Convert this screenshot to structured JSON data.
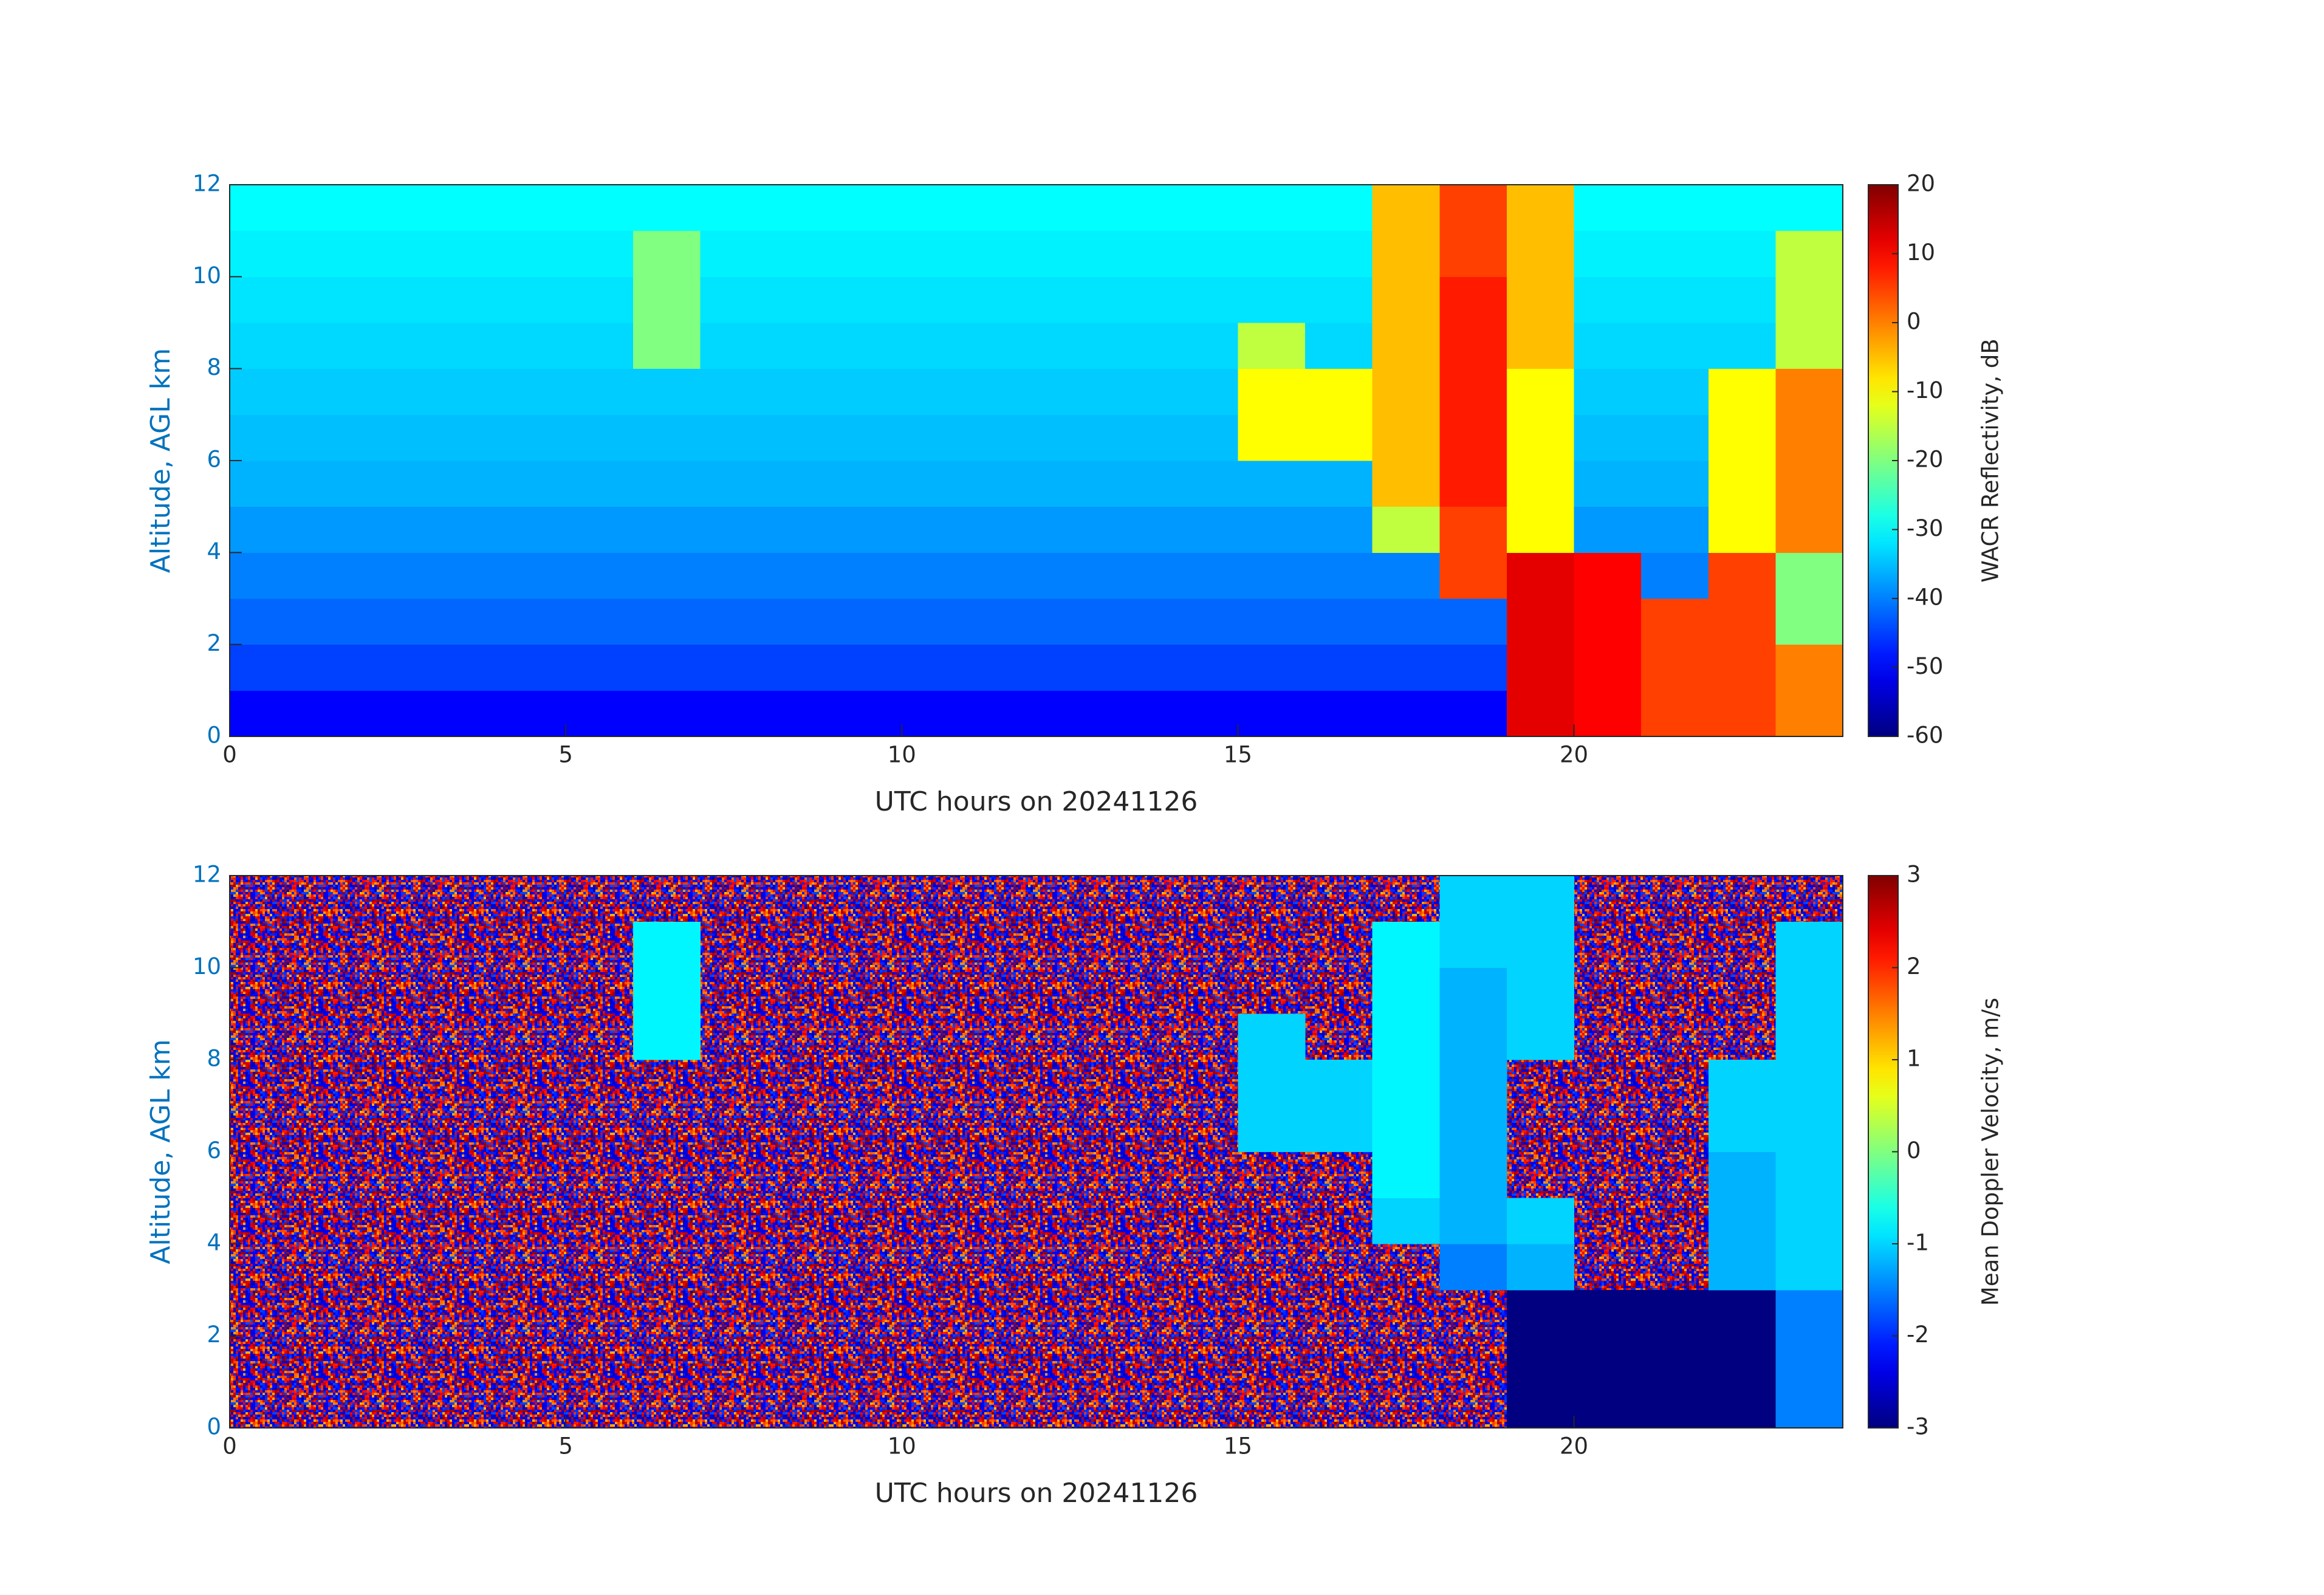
{
  "chart_data": [
    {
      "type": "heatmap",
      "colormap": "jet",
      "xlabel": "UTC hours on 20241126",
      "ylabel": "Altitude, AGL km",
      "colorbar_label": "WACR Reflectivity, dB",
      "xlim": [
        0,
        24
      ],
      "xticks": [
        0,
        5,
        10,
        15,
        20
      ],
      "ylim": [
        0,
        12
      ],
      "yticks": [
        0,
        2,
        4,
        6,
        8,
        10,
        12
      ],
      "clim": [
        -60,
        20
      ],
      "cticks": [
        -60,
        -50,
        -40,
        -30,
        -20,
        -10,
        0,
        10,
        20
      ],
      "xbins": [
        0,
        1,
        2,
        3,
        4,
        5,
        6,
        7,
        8,
        9,
        10,
        11,
        12,
        13,
        14,
        15,
        16,
        17,
        18,
        19,
        20,
        21,
        22,
        23,
        24
      ],
      "ybins": [
        0,
        1,
        2,
        3,
        4,
        5,
        6,
        7,
        8,
        9,
        10,
        11,
        12
      ],
      "values": [
        [
          -50,
          -50,
          -50,
          -50,
          -50,
          -50,
          -50,
          -50,
          -50,
          -50,
          -50,
          -50,
          -50,
          -50,
          -50,
          -50,
          -50,
          -50,
          -50,
          12,
          10,
          5,
          5,
          0
        ],
        [
          -45,
          -45,
          -45,
          -45,
          -45,
          -45,
          -45,
          -45,
          -45,
          -45,
          -45,
          -45,
          -45,
          -45,
          -45,
          -45,
          -45,
          -45,
          -45,
          12,
          10,
          5,
          5,
          0
        ],
        [
          -42,
          -42,
          -42,
          -42,
          -42,
          -42,
          -42,
          -42,
          -42,
          -42,
          -42,
          -42,
          -42,
          -42,
          -42,
          -42,
          -42,
          -42,
          -42,
          12,
          10,
          5,
          5,
          -20
        ],
        [
          -40,
          -40,
          -40,
          -40,
          -40,
          -40,
          -40,
          -40,
          -40,
          -40,
          -40,
          -40,
          -40,
          -40,
          -40,
          -40,
          -40,
          -40,
          5,
          12,
          10,
          -40,
          5,
          -20
        ],
        [
          -38,
          -38,
          -38,
          -38,
          -38,
          -38,
          -38,
          -38,
          -38,
          -38,
          -38,
          -38,
          -38,
          -38,
          -38,
          -38,
          -38,
          -15,
          5,
          -10,
          -38,
          -38,
          -10,
          0
        ],
        [
          -36,
          -36,
          -36,
          -36,
          -36,
          -36,
          -36,
          -36,
          -36,
          -36,
          -36,
          -36,
          -36,
          -36,
          -36,
          -36,
          -36,
          -5,
          8,
          -10,
          -36,
          -36,
          -10,
          0
        ],
        [
          -35,
          -35,
          -35,
          -35,
          -35,
          -35,
          -35,
          -35,
          -35,
          -35,
          -35,
          -35,
          -35,
          -35,
          -35,
          -10,
          -10,
          -5,
          8,
          -10,
          -35,
          -35,
          -10,
          0
        ],
        [
          -34,
          -34,
          -34,
          -34,
          -34,
          -34,
          -34,
          -34,
          -34,
          -34,
          -34,
          -34,
          -34,
          -34,
          -34,
          -10,
          -10,
          -5,
          8,
          -10,
          -34,
          -34,
          -10,
          0
        ],
        [
          -33,
          -33,
          -33,
          -33,
          -33,
          -33,
          -20,
          -33,
          -33,
          -33,
          -33,
          -33,
          -33,
          -33,
          -33,
          -15,
          -33,
          -5,
          8,
          -5,
          -33,
          -33,
          -33,
          -15
        ],
        [
          -32,
          -32,
          -32,
          -32,
          -32,
          -32,
          -20,
          -32,
          -32,
          -32,
          -32,
          -32,
          -32,
          -32,
          -32,
          -32,
          -32,
          -5,
          8,
          -5,
          -32,
          -32,
          -32,
          -15
        ],
        [
          -31,
          -31,
          -31,
          -31,
          -31,
          -31,
          -20,
          -31,
          -31,
          -31,
          -31,
          -31,
          -31,
          -31,
          -31,
          -31,
          -31,
          -5,
          5,
          -5,
          -31,
          -31,
          -31,
          -15
        ],
        [
          -30,
          -30,
          -30,
          -30,
          -30,
          -30,
          -30,
          -30,
          -30,
          -30,
          -30,
          -30,
          -30,
          -30,
          -30,
          -30,
          -30,
          -5,
          5,
          -5,
          -30,
          -30,
          -30,
          -30
        ]
      ]
    },
    {
      "type": "heatmap",
      "colormap": "jet",
      "xlabel": "UTC hours on 20241126",
      "ylabel": "Altitude, AGL km",
      "colorbar_label": "Mean Doppler Velocity, m/s",
      "xlim": [
        0,
        24
      ],
      "xticks": [
        0,
        5,
        10,
        15,
        20
      ],
      "ylim": [
        0,
        12
      ],
      "yticks": [
        0,
        2,
        4,
        6,
        8,
        10,
        12
      ],
      "clim": [
        -3,
        3
      ],
      "cticks": [
        -3,
        -2,
        -1,
        0,
        1,
        2,
        3
      ],
      "xbins": [
        0,
        1,
        2,
        3,
        4,
        5,
        6,
        7,
        8,
        9,
        10,
        11,
        12,
        13,
        14,
        15,
        16,
        17,
        18,
        19,
        20,
        21,
        22,
        23,
        24
      ],
      "ybins": [
        0,
        1,
        2,
        3,
        4,
        5,
        6,
        7,
        8,
        9,
        10,
        11,
        12
      ],
      "values": [
        [
          null,
          null,
          null,
          null,
          null,
          null,
          null,
          null,
          null,
          null,
          null,
          null,
          null,
          null,
          null,
          null,
          null,
          null,
          null,
          -3,
          -3,
          -3,
          -3,
          -1.5
        ],
        [
          null,
          null,
          null,
          null,
          null,
          null,
          null,
          null,
          null,
          null,
          null,
          null,
          null,
          null,
          null,
          null,
          null,
          null,
          null,
          -3,
          -3,
          -3,
          -3,
          -1.5
        ],
        [
          null,
          null,
          null,
          null,
          null,
          null,
          null,
          null,
          null,
          null,
          null,
          null,
          null,
          null,
          null,
          null,
          null,
          null,
          null,
          -3,
          -3,
          -3,
          -3,
          -1.5
        ],
        [
          null,
          null,
          null,
          null,
          null,
          null,
          null,
          null,
          null,
          null,
          null,
          null,
          null,
          null,
          null,
          null,
          null,
          null,
          -1.5,
          -1.2,
          null,
          null,
          -1.2,
          -1
        ],
        [
          null,
          null,
          null,
          null,
          null,
          null,
          null,
          null,
          null,
          null,
          null,
          null,
          null,
          null,
          null,
          null,
          null,
          -1,
          -1.2,
          -1,
          null,
          null,
          -1.2,
          -1
        ],
        [
          null,
          null,
          null,
          null,
          null,
          null,
          null,
          null,
          null,
          null,
          null,
          null,
          null,
          null,
          null,
          null,
          null,
          -0.8,
          -1.2,
          null,
          null,
          null,
          -1.2,
          -1
        ],
        [
          null,
          null,
          null,
          null,
          null,
          null,
          null,
          null,
          null,
          null,
          null,
          null,
          null,
          null,
          null,
          -1,
          -1,
          -0.8,
          -1.2,
          null,
          null,
          null,
          -1,
          -1
        ],
        [
          null,
          null,
          null,
          null,
          null,
          null,
          null,
          null,
          null,
          null,
          null,
          null,
          null,
          null,
          null,
          -1,
          -1,
          -0.8,
          -1.2,
          null,
          null,
          null,
          -1,
          -1
        ],
        [
          null,
          null,
          null,
          null,
          null,
          null,
          -0.8,
          null,
          null,
          null,
          null,
          null,
          null,
          null,
          null,
          -1,
          null,
          -0.8,
          -1.2,
          -1,
          null,
          null,
          null,
          -1
        ],
        [
          null,
          null,
          null,
          null,
          null,
          null,
          -0.8,
          null,
          null,
          null,
          null,
          null,
          null,
          null,
          null,
          null,
          null,
          -0.8,
          -1.2,
          -1,
          null,
          null,
          null,
          -1
        ],
        [
          null,
          null,
          null,
          null,
          null,
          null,
          -0.8,
          null,
          null,
          null,
          null,
          null,
          null,
          null,
          null,
          null,
          null,
          -0.8,
          -1,
          -1,
          null,
          null,
          null,
          -1
        ],
        [
          null,
          null,
          null,
          null,
          null,
          null,
          null,
          null,
          null,
          null,
          null,
          null,
          null,
          null,
          null,
          null,
          null,
          null,
          -1,
          -1,
          null,
          null,
          null,
          null
        ]
      ]
    }
  ]
}
